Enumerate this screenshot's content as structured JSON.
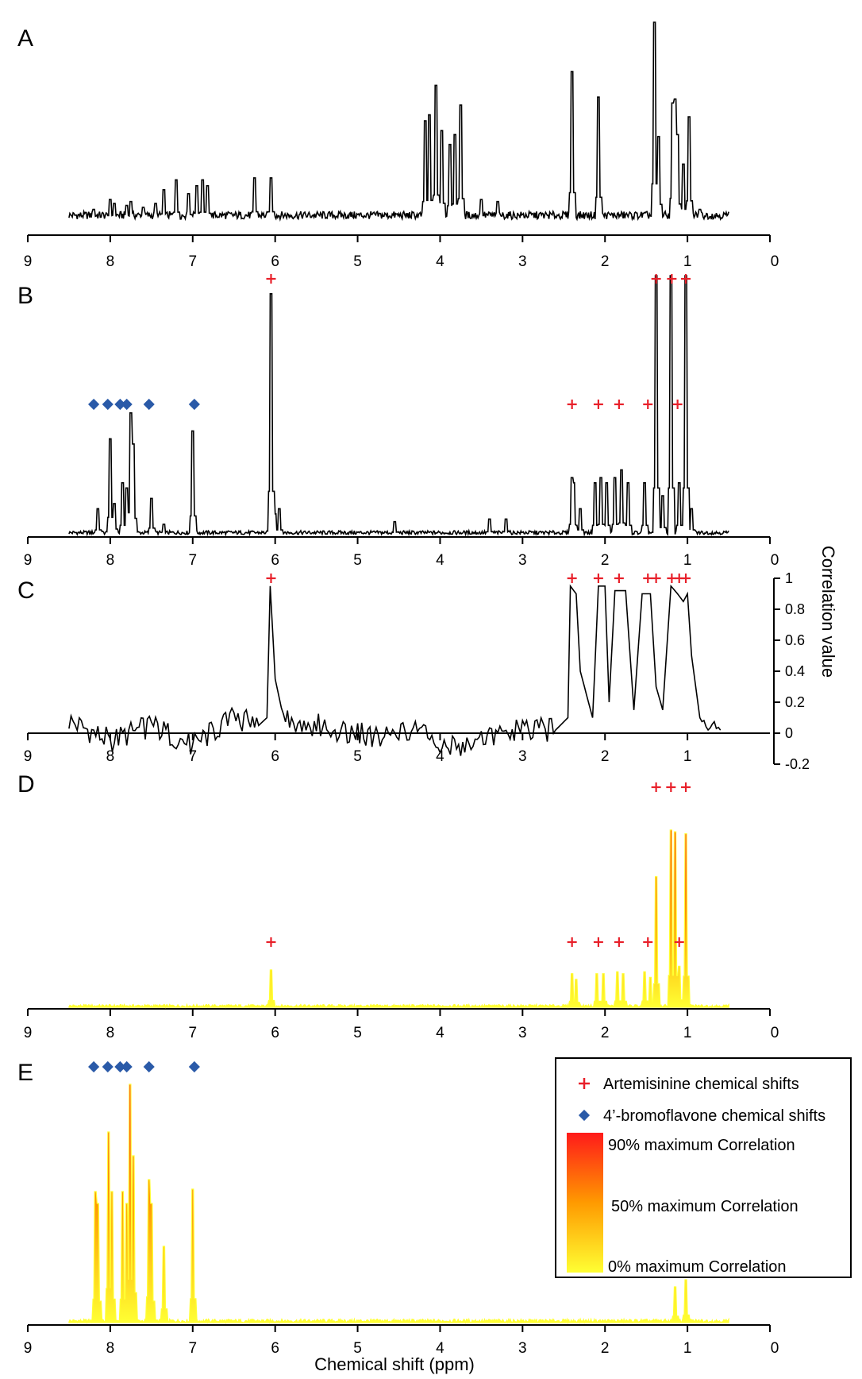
{
  "figure": {
    "xlabel": "Chemical shift (ppm)",
    "colors": {
      "spectrum": "#000000",
      "artemisinine_marker": "#e8202a",
      "bromoflavone_marker": "#2a5aa8",
      "corr_high": "#ff1a1a",
      "corr_mid": "#ff9a00",
      "corr_low": "#ffff33"
    }
  },
  "legend": {
    "artemisinine": "Artemisinine chemical shifts",
    "bromoflavone": "4’-bromoflavone chemical shifts",
    "high": "90% maximum Correlation",
    "mid": "50% maximum Correlation",
    "low": "0% maximum Correlation"
  },
  "chart_data": [
    {
      "panel": "A",
      "type": "line",
      "title": "A",
      "x_ticks": [
        9,
        8,
        7,
        6,
        5,
        4,
        3,
        2,
        1,
        0
      ],
      "xlim": [
        9,
        0
      ],
      "x_reversed": true,
      "ylim": [
        0,
        1
      ],
      "peaks": [
        [
          8.2,
          0.05
        ],
        [
          8.0,
          0.1
        ],
        [
          7.95,
          0.08
        ],
        [
          7.8,
          0.07
        ],
        [
          7.75,
          0.09
        ],
        [
          7.6,
          0.06
        ],
        [
          7.45,
          0.08
        ],
        [
          7.35,
          0.15
        ],
        [
          7.2,
          0.2
        ],
        [
          7.05,
          0.13
        ],
        [
          6.95,
          0.17
        ],
        [
          6.88,
          0.2
        ],
        [
          6.82,
          0.17
        ],
        [
          6.25,
          0.21
        ],
        [
          6.05,
          0.21
        ],
        [
          4.18,
          0.5
        ],
        [
          4.13,
          0.53
        ],
        [
          4.05,
          0.68
        ],
        [
          3.98,
          0.45
        ],
        [
          3.88,
          0.38
        ],
        [
          3.82,
          0.43
        ],
        [
          3.75,
          0.58
        ],
        [
          3.5,
          0.1
        ],
        [
          3.3,
          0.09
        ],
        [
          2.4,
          0.75
        ],
        [
          2.08,
          0.62
        ],
        [
          1.4,
          1.0
        ],
        [
          1.35,
          0.42
        ],
        [
          1.18,
          0.59
        ],
        [
          1.15,
          0.61
        ],
        [
          1.12,
          0.43
        ],
        [
          1.05,
          0.28
        ],
        [
          0.98,
          0.52
        ],
        [
          0.85,
          0.05
        ]
      ]
    },
    {
      "panel": "B",
      "type": "line",
      "title": "B",
      "x_ticks": [
        9,
        8,
        7,
        6,
        5,
        4,
        3,
        2,
        1,
        0
      ],
      "xlim": [
        9,
        0
      ],
      "x_reversed": true,
      "ylim": [
        0,
        1
      ],
      "peaks": [
        [
          8.15,
          0.1
        ],
        [
          8.0,
          0.37
        ],
        [
          7.95,
          0.12
        ],
        [
          7.85,
          0.2
        ],
        [
          7.8,
          0.18
        ],
        [
          7.75,
          0.47
        ],
        [
          7.72,
          0.35
        ],
        [
          7.5,
          0.14
        ],
        [
          7.35,
          0.04
        ],
        [
          7.0,
          0.4
        ],
        [
          6.05,
          0.93
        ],
        [
          6.0,
          0.08
        ],
        [
          5.95,
          0.1
        ],
        [
          4.55,
          0.05
        ],
        [
          3.4,
          0.06
        ],
        [
          3.2,
          0.06
        ],
        [
          2.4,
          0.22
        ],
        [
          2.38,
          0.2
        ],
        [
          2.3,
          0.1
        ],
        [
          2.12,
          0.2
        ],
        [
          2.05,
          0.22
        ],
        [
          1.98,
          0.2
        ],
        [
          1.88,
          0.22
        ],
        [
          1.8,
          0.25
        ],
        [
          1.72,
          0.2
        ],
        [
          1.52,
          0.2
        ],
        [
          1.38,
          1.0
        ],
        [
          1.3,
          0.15
        ],
        [
          1.2,
          1.0
        ],
        [
          1.1,
          0.2
        ],
        [
          1.02,
          1.0
        ],
        [
          0.95,
          0.1
        ]
      ],
      "artemisinine_markers": [
        6.05,
        1.38,
        1.19,
        1.02,
        2.4,
        2.08,
        1.83,
        1.48,
        1.12
      ],
      "bromoflavone_markers": [
        8.2,
        8.03,
        7.88,
        7.8,
        7.53,
        6.98
      ]
    },
    {
      "panel": "C",
      "type": "line",
      "title": "C",
      "ylabel": "Correlation value",
      "x_ticks": [
        9,
        8,
        7,
        6,
        5,
        4,
        3,
        2,
        1
      ],
      "y_ticks": [
        1,
        0.8,
        0.6,
        0.4,
        0.2,
        0,
        -0.2
      ],
      "xlim": [
        9,
        0
      ],
      "x_reversed": true,
      "ylim": [
        -0.2,
        1
      ],
      "segments": [
        [
          [
            8.5,
            0.08
          ],
          [
            8.0,
            -0.05
          ],
          [
            7.5,
            0.05
          ],
          [
            7.0,
            -0.08
          ],
          [
            6.5,
            0.1
          ],
          [
            6.2,
            0.05
          ],
          [
            6.1,
            0.1
          ],
          [
            6.06,
            0.95
          ],
          [
            6.0,
            0.35
          ],
          [
            5.9,
            0.1
          ],
          [
            5.5,
            0.05
          ],
          [
            5.0,
            0.0
          ],
          [
            4.6,
            -0.03
          ],
          [
            4.3,
            0.05
          ],
          [
            4.0,
            -0.1
          ],
          [
            3.5,
            -0.05
          ],
          [
            3.0,
            0.02
          ],
          [
            2.6,
            0.02
          ],
          [
            2.45,
            0.1
          ],
          [
            2.42,
            0.95
          ],
          [
            2.35,
            0.9
          ],
          [
            2.3,
            0.4
          ],
          [
            2.15,
            0.1
          ],
          [
            2.08,
            0.95
          ],
          [
            2.0,
            0.95
          ],
          [
            1.95,
            0.2
          ],
          [
            1.88,
            0.92
          ],
          [
            1.75,
            0.92
          ],
          [
            1.65,
            0.15
          ],
          [
            1.55,
            0.9
          ],
          [
            1.45,
            0.9
          ],
          [
            1.38,
            0.3
          ],
          [
            1.3,
            0.15
          ],
          [
            1.2,
            0.95
          ],
          [
            1.12,
            0.9
          ],
          [
            1.05,
            0.85
          ],
          [
            1.0,
            0.9
          ],
          [
            0.95,
            0.5
          ],
          [
            0.85,
            0.1
          ],
          [
            0.8,
            0.05
          ],
          [
            0.6,
            0.02
          ]
        ]
      ],
      "artemisinine_markers": [
        6.05,
        2.4,
        2.08,
        1.83,
        1.48,
        1.38,
        1.19,
        1.1,
        1.02
      ]
    },
    {
      "panel": "D",
      "type": "area",
      "title": "D",
      "x_ticks": [
        9,
        8,
        7,
        6,
        5,
        4,
        3,
        2,
        1,
        0
      ],
      "xlim": [
        9,
        0
      ],
      "x_reversed": true,
      "ylim": [
        0,
        1
      ],
      "peaks": [
        [
          6.05,
          0.2
        ],
        [
          2.4,
          0.18
        ],
        [
          2.35,
          0.15
        ],
        [
          2.1,
          0.18
        ],
        [
          2.02,
          0.18
        ],
        [
          1.85,
          0.19
        ],
        [
          1.78,
          0.18
        ],
        [
          1.52,
          0.19
        ],
        [
          1.45,
          0.16
        ],
        [
          1.38,
          0.7
        ],
        [
          1.2,
          0.95
        ],
        [
          1.15,
          0.94
        ],
        [
          1.1,
          0.22
        ],
        [
          1.02,
          0.93
        ]
      ],
      "artemisinine_top_markers": [
        1.38,
        1.2,
        1.02
      ],
      "artemisinine_markers": [
        6.05,
        2.4,
        2.08,
        1.83,
        1.48,
        1.1
      ]
    },
    {
      "panel": "E",
      "type": "area",
      "title": "E",
      "x_ticks": [
        9,
        8,
        7,
        6,
        5,
        4,
        3,
        2,
        1,
        0
      ],
      "xlim": [
        9,
        0
      ],
      "x_reversed": true,
      "ylim": [
        0,
        1
      ],
      "peaks": [
        [
          8.18,
          0.55
        ],
        [
          8.15,
          0.5
        ],
        [
          8.02,
          0.8
        ],
        [
          7.98,
          0.55
        ],
        [
          7.85,
          0.55
        ],
        [
          7.8,
          0.5
        ],
        [
          7.76,
          1.0
        ],
        [
          7.72,
          0.7
        ],
        [
          7.53,
          0.6
        ],
        [
          7.5,
          0.5
        ],
        [
          7.35,
          0.32
        ],
        [
          7.0,
          0.56
        ],
        [
          1.15,
          0.15
        ],
        [
          1.02,
          0.18
        ]
      ],
      "bromoflavone_markers": [
        8.2,
        8.03,
        7.88,
        7.8,
        7.53,
        6.98
      ]
    }
  ]
}
